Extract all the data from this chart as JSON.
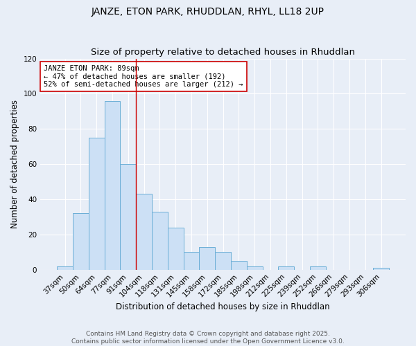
{
  "title": "JANZE, ETON PARK, RHUDDLAN, RHYL, LL18 2UP",
  "subtitle": "Size of property relative to detached houses in Rhuddlan",
  "xlabel": "Distribution of detached houses by size in Rhuddlan",
  "ylabel": "Number of detached properties",
  "bar_labels": [
    "37sqm",
    "50sqm",
    "64sqm",
    "77sqm",
    "91sqm",
    "104sqm",
    "118sqm",
    "131sqm",
    "145sqm",
    "158sqm",
    "172sqm",
    "185sqm",
    "198sqm",
    "212sqm",
    "225sqm",
    "239sqm",
    "252sqm",
    "266sqm",
    "279sqm",
    "293sqm",
    "306sqm"
  ],
  "bar_values": [
    2,
    32,
    75,
    96,
    60,
    43,
    33,
    24,
    10,
    13,
    10,
    5,
    2,
    0,
    2,
    0,
    2,
    0,
    0,
    0,
    1
  ],
  "bar_color": "#cce0f5",
  "bar_edge_color": "#6aaed6",
  "vline_color": "#cc0000",
  "vline_x_index": 4,
  "ylim": [
    0,
    120
  ],
  "yticks": [
    0,
    20,
    40,
    60,
    80,
    100,
    120
  ],
  "annotation_title": "JANZE ETON PARK: 89sqm",
  "annotation_line1": "← 47% of detached houses are smaller (192)",
  "annotation_line2": "52% of semi-detached houses are larger (212) →",
  "annotation_box_color": "white",
  "annotation_box_edge": "#cc0000",
  "footer1": "Contains HM Land Registry data © Crown copyright and database right 2025.",
  "footer2": "Contains public sector information licensed under the Open Government Licence v3.0.",
  "plot_bg_color": "#e8eef7",
  "fig_bg_color": "#e8eef7",
  "grid_color": "white",
  "title_fontsize": 10,
  "label_fontsize": 8.5,
  "tick_fontsize": 7.5,
  "annot_fontsize": 7.5,
  "footer_fontsize": 6.5
}
